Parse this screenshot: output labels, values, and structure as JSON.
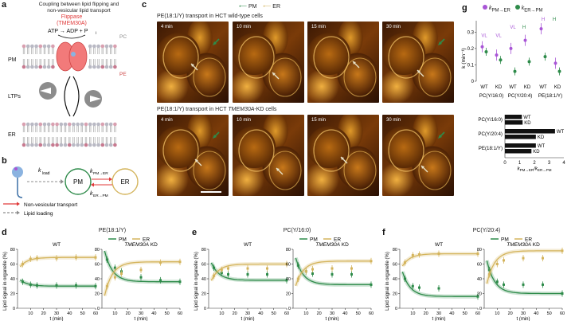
{
  "colors": {
    "pm": "#2e8b4a",
    "er": "#d4b45c",
    "red": "#e03a3a",
    "purple": "#a855d6",
    "flippase": "#f27a7a",
    "grey": "#8c8c8c"
  },
  "panel_a": {
    "letter": "a",
    "title_line1": "Coupling between lipid flipping and",
    "title_line2": "non-vesicular lipid transport",
    "flippase_name": "Flippase",
    "flippase_gene": "(TMEM30A)",
    "reaction": "ATP → ADP + P",
    "reaction_sub": "i",
    "pc": "PC",
    "pe": "PE",
    "pm": "PM",
    "ltps": "LTPs",
    "er": "ER"
  },
  "panel_b": {
    "letter": "b",
    "kload": "k",
    "kload_sub": "load",
    "pm": "PM",
    "er": "ER",
    "k_pm_er": "k",
    "k_pm_er_sub": "PM→ER",
    "k_er_pm": "k",
    "k_er_pm_sub": "ER→PM",
    "legend_red": "Non-vesicular transport",
    "legend_grey": "Lipid loading"
  },
  "panel_c": {
    "letter": "c",
    "legend_pm": "PM",
    "legend_er": "ER",
    "row1_title": "PE(18:1/Y) transport in HCT wild-type cells",
    "row2_title_pre": "PE(18:1/Y) transport in HCT ",
    "row2_title_gene": "TMEM30A",
    "row2_title_post": "-KD cells",
    "times": [
      "4 min",
      "10 min",
      "15 min",
      "30 min"
    ]
  },
  "panel_g": {
    "letter": "g",
    "legend1": "k",
    "legend1_sub": "PM→ER",
    "legend2": "k",
    "legend2_sub": "ER→PM",
    "ylabel": "k (min⁻¹)",
    "yticks": [
      "0",
      "0.1",
      "0.2",
      "0.3"
    ],
    "groups": [
      "PC(Y/16:0)",
      "PC(Y/20:4)",
      "PE(18:1/Y)"
    ],
    "xcats": [
      "WT",
      "KD",
      "WT",
      "KD",
      "WT",
      "KD"
    ],
    "annot": [
      "VL",
      "VL",
      "VL",
      "H",
      "H",
      "H"
    ],
    "bar_groups": [
      "PC(Y/16:0)",
      "PC(Y/20:4)",
      "PE(18:1/Y)"
    ],
    "bar_labels": [
      "WT",
      "KD",
      "WT",
      "KD",
      "WT",
      "KD"
    ],
    "bar_xticks": [
      "0",
      "1",
      "2",
      "3",
      "4"
    ],
    "bar_xlabel": "k",
    "bar_xlabel_sub": "PM→ER",
    "bar_xlabel_mid": "/k",
    "bar_xlabel_sub2": "ER→PM"
  },
  "kinetics": {
    "legend_pm": "PM",
    "legend_er": "ER",
    "ylabel": "Lipid signal in organelle (%)",
    "xlabel": "t (min)",
    "yticks": [
      "0",
      "20",
      "40",
      "60",
      "80"
    ],
    "xticks": [
      "10",
      "20",
      "30",
      "40",
      "50",
      "60"
    ],
    "d": {
      "letter": "d",
      "lipid": "PE(18:1/Y)",
      "wt": "WT",
      "kd_gene": "TMEM30A",
      "kd_suffix": " KD"
    },
    "e": {
      "letter": "e",
      "lipid": "PC(Y/16:0)",
      "wt": "WT",
      "kd_gene": "TMEM30A",
      "kd_suffix": " KD"
    },
    "f": {
      "letter": "f",
      "lipid": "PC(Y/20:4)",
      "wt": "WT",
      "kd_gene": "TMEM30A",
      "kd_suffix": " KD"
    }
  },
  "chart_data": [
    {
      "type": "scatter",
      "title": "",
      "ylabel": "k (min⁻¹)",
      "ylim": [
        0,
        0.35
      ],
      "categories": [
        "PC(Y/16:0) WT",
        "PC(Y/16:0) KD",
        "PC(Y/20:4) WT",
        "PC(Y/20:4) KD",
        "PE(18:1/Y) WT",
        "PE(18:1/Y) KD"
      ],
      "series": [
        {
          "name": "kPM→ER",
          "values": [
            0.21,
            0.16,
            0.2,
            0.25,
            0.32,
            0.11
          ]
        },
        {
          "name": "kER→PM",
          "values": [
            0.18,
            0.13,
            0.06,
            0.12,
            0.15,
            0.06
          ]
        }
      ]
    },
    {
      "type": "bar",
      "orientation": "horizontal",
      "xlabel": "kPM→ER/kER→PM",
      "xlim": [
        0,
        4
      ],
      "categories": [
        "PC(Y/16:0) WT",
        "PC(Y/16:0) KD",
        "PC(Y/20:4) WT",
        "PC(Y/20:4) KD",
        "PE(18:1/Y) WT",
        "PE(18:1/Y) KD"
      ],
      "values": [
        1.15,
        1.2,
        3.4,
        2.1,
        2.1,
        1.8
      ]
    },
    {
      "type": "line",
      "panel": "d",
      "sub": "WT",
      "xlim": [
        0,
        60
      ],
      "ylim": [
        0,
        80
      ],
      "series": [
        {
          "name": "PM",
          "x": [
            4,
            10,
            15,
            30,
            45,
            60
          ],
          "y": [
            36,
            32,
            31,
            31,
            31,
            30
          ]
        },
        {
          "name": "ER",
          "x": [
            4,
            10,
            15,
            30,
            45,
            60
          ],
          "y": [
            60,
            67,
            68,
            68,
            69,
            69
          ]
        }
      ]
    },
    {
      "type": "line",
      "panel": "d",
      "sub": "TMEM30A KD",
      "xlim": [
        0,
        60
      ],
      "ylim": [
        0,
        80
      ],
      "series": [
        {
          "name": "PM",
          "x": [
            4,
            10,
            15,
            30,
            45,
            60
          ],
          "y": [
            66,
            55,
            50,
            42,
            38,
            36
          ]
        },
        {
          "name": "ER",
          "x": [
            4,
            10,
            15,
            30,
            45,
            60
          ],
          "y": [
            30,
            42,
            47,
            52,
            62,
            63
          ]
        }
      ]
    },
    {
      "type": "line",
      "panel": "e",
      "sub": "WT",
      "xlim": [
        0,
        60
      ],
      "ylim": [
        0,
        80
      ],
      "series": [
        {
          "name": "PM",
          "x": [
            4,
            10,
            15,
            30,
            45,
            60
          ],
          "y": [
            55,
            48,
            46,
            46,
            46,
            38
          ]
        },
        {
          "name": "ER",
          "x": [
            4,
            10,
            15,
            30,
            45,
            60
          ],
          "y": [
            44,
            52,
            54,
            54,
            54,
            60
          ]
        }
      ]
    },
    {
      "type": "line",
      "panel": "e",
      "sub": "TMEM30A KD",
      "xlim": [
        0,
        60
      ],
      "ylim": [
        0,
        80
      ],
      "series": [
        {
          "name": "PM",
          "x": [
            4,
            10,
            15,
            30,
            45,
            60
          ],
          "y": [
            58,
            50,
            47,
            46,
            46,
            32
          ]
        },
        {
          "name": "ER",
          "x": [
            4,
            10,
            15,
            30,
            45,
            60
          ],
          "y": [
            40,
            50,
            53,
            54,
            54,
            64
          ]
        }
      ]
    },
    {
      "type": "line",
      "panel": "f",
      "sub": "WT",
      "xlim": [
        0,
        60
      ],
      "ylim": [
        0,
        80
      ],
      "series": [
        {
          "name": "PM",
          "x": [
            4,
            10,
            15,
            30,
            60
          ],
          "y": [
            40,
            30,
            28,
            27,
            16
          ]
        },
        {
          "name": "ER",
          "x": [
            4,
            10,
            15,
            30,
            60
          ],
          "y": [
            62,
            72,
            73,
            74,
            74
          ]
        }
      ]
    },
    {
      "type": "line",
      "panel": "f",
      "sub": "TMEM30A KD",
      "xlim": [
        0,
        60
      ],
      "ylim": [
        0,
        80
      ],
      "series": [
        {
          "name": "PM",
          "x": [
            4,
            10,
            15,
            30,
            45,
            60
          ],
          "y": [
            52,
            36,
            32,
            32,
            32,
            20
          ]
        },
        {
          "name": "ER",
          "x": [
            4,
            10,
            15,
            30,
            45,
            60
          ],
          "y": [
            46,
            60,
            65,
            68,
            68,
            78
          ]
        }
      ]
    }
  ]
}
